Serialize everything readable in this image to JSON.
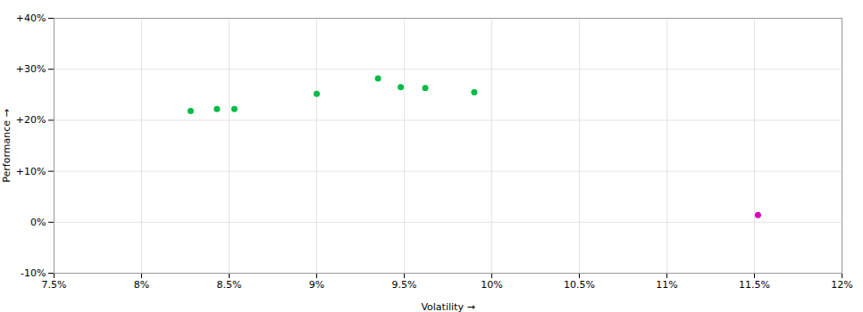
{
  "chart_data": {
    "type": "scatter",
    "x_label": "Volatility",
    "y_label": "Performance",
    "series": [
      {
        "color": "#00bb44",
        "marker": "circle",
        "x": [
          0.0828,
          0.0843,
          0.0853,
          0.09,
          0.0935,
          0.0948,
          0.0962,
          0.099
        ],
        "values": [
          0.218,
          0.222,
          0.222,
          0.252,
          0.282,
          0.265,
          0.263,
          0.255
        ]
      },
      {
        "color": "#dd00bb",
        "marker": "circle",
        "x": [
          0.1152
        ],
        "values": [
          0.014
        ]
      }
    ],
    "xlim": [
      0.075,
      0.12
    ],
    "ylim": [
      -0.1,
      0.4
    ],
    "xticks": [
      {
        "value": 0.075,
        "label": "7.5%"
      },
      {
        "value": 0.08,
        "label": "8%"
      },
      {
        "value": 0.085,
        "label": "8.5%"
      },
      {
        "value": 0.09,
        "label": "9%"
      },
      {
        "value": 0.095,
        "label": "9.5%"
      },
      {
        "value": 0.1,
        "label": "10%"
      },
      {
        "value": 0.105,
        "label": "10.5%"
      },
      {
        "value": 0.11,
        "label": "11%"
      },
      {
        "value": 0.115,
        "label": "11.5%"
      },
      {
        "value": 0.12,
        "label": "12%"
      }
    ],
    "yticks": [
      {
        "value": -0.1,
        "label": "-10%"
      },
      {
        "value": 0.0,
        "label": "0%"
      },
      {
        "value": 0.1,
        "label": "+10%"
      },
      {
        "value": 0.2,
        "label": "+20%"
      },
      {
        "value": 0.3,
        "label": "+30%"
      },
      {
        "value": 0.4,
        "label": "+40%"
      }
    ],
    "grid": true
  }
}
